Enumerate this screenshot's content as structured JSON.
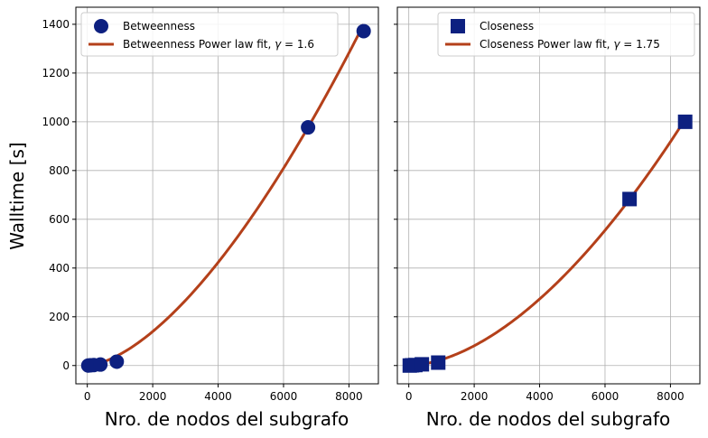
{
  "chart_data": [
    {
      "type": "scatter",
      "title": "",
      "xlabel": "Nro. de nodos del subgrafo",
      "ylabel": "Walltime [s]",
      "xlim": [
        -350,
        8900
      ],
      "ylim": [
        -75,
        1470
      ],
      "xticks": [
        0,
        2000,
        4000,
        6000,
        8000
      ],
      "yticks": [
        0,
        200,
        400,
        600,
        800,
        1000,
        1200,
        1400
      ],
      "xtick_labels": [
        "0",
        "2000",
        "4000",
        "6000",
        "8000"
      ],
      "ytick_labels": [
        "0",
        "200",
        "400",
        "600",
        "800",
        "1000",
        "1200",
        "1400"
      ],
      "grid": true,
      "legend_position": "top-left",
      "series": [
        {
          "name": "Betweenness",
          "kind": "scatter",
          "marker": "circle",
          "color": "#0d2080",
          "x": [
            30,
            100,
            200,
            400,
            900,
            6750,
            8450
          ],
          "y": [
            0,
            1,
            2,
            4,
            16,
            977,
            1372
          ]
        },
        {
          "name": "Betweenness Power law fit, ",
          "name_suffix": "= 1.6",
          "kind": "line",
          "color": "#b4401a",
          "x_range": [
            0,
            8450
          ],
          "gamma": 1.6,
          "end_value": 1400
        }
      ]
    },
    {
      "type": "scatter",
      "title": "",
      "xlabel": "Nro. de nodos del subgrafo",
      "ylabel": "",
      "xlim": [
        -350,
        8900
      ],
      "ylim": [
        -75,
        1470
      ],
      "xticks": [
        0,
        2000,
        4000,
        6000,
        8000
      ],
      "yticks": [
        0,
        200,
        400,
        600,
        800,
        1000,
        1200,
        1400
      ],
      "xtick_labels": [
        "0",
        "2000",
        "4000",
        "6000",
        "8000"
      ],
      "ytick_labels": [],
      "grid": true,
      "legend_position": "top-right",
      "series": [
        {
          "name": "Closeness",
          "kind": "scatter",
          "marker": "square",
          "color": "#0d2080",
          "x": [
            30,
            100,
            200,
            400,
            900,
            6750,
            8450
          ],
          "y": [
            0,
            1,
            2,
            5,
            12,
            683,
            1000
          ]
        },
        {
          "name": "Closeness Power law fit, ",
          "name_suffix": "= 1.75",
          "kind": "line",
          "color": "#b4401a",
          "x_range": [
            0,
            8450
          ],
          "gamma": 1.75,
          "end_value": 1010
        }
      ]
    }
  ],
  "gamma_symbol": "γ"
}
